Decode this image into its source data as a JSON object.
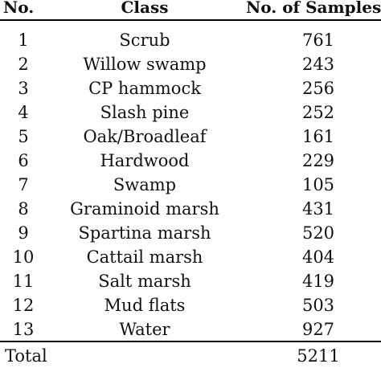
{
  "table": {
    "headers": {
      "no": "No.",
      "class": "Class",
      "samples": "No. of Samples"
    },
    "rows": [
      {
        "no": "1",
        "class": "Scrub",
        "samples": "761"
      },
      {
        "no": "2",
        "class": "Willow swamp",
        "samples": "243"
      },
      {
        "no": "3",
        "class": "CP hammock",
        "samples": "256"
      },
      {
        "no": "4",
        "class": "Slash pine",
        "samples": "252"
      },
      {
        "no": "5",
        "class": "Oak/Broadleaf",
        "samples": "161"
      },
      {
        "no": "6",
        "class": "Hardwood",
        "samples": "229"
      },
      {
        "no": "7",
        "class": "Swamp",
        "samples": "105"
      },
      {
        "no": "8",
        "class": "Graminoid marsh",
        "samples": "431"
      },
      {
        "no": "9",
        "class": "Spartina marsh",
        "samples": "520"
      },
      {
        "no": "10",
        "class": "Cattail marsh",
        "samples": "404"
      },
      {
        "no": "11",
        "class": "Salt marsh",
        "samples": "419"
      },
      {
        "no": "12",
        "class": "Mud flats",
        "samples": "503"
      },
      {
        "no": "13",
        "class": "Water",
        "samples": "927"
      }
    ],
    "total": {
      "label": "Total",
      "samples": "5211"
    }
  }
}
